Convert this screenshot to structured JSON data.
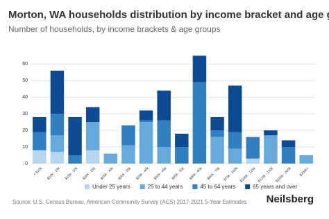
{
  "chart_data": {
    "type": "stacked-bar",
    "title": "Morton, WA households distribution by income bracket and age group",
    "subtitle": "Number of households, by income brackets & age groups",
    "categories": [
      "< $10k",
      "$10k - 15k",
      "$15k - 20k",
      "$20k - 25k",
      "$25k - 30k",
      "$30k - 35k",
      "$35k - 40k",
      "$40k - 45k",
      "$45k - 50k",
      "$50k - 60k",
      "$60k - 75k",
      "$75k - 100k",
      "$100k - 125k",
      "$125k - 150k",
      "$150k - 200k",
      "$200k+"
    ],
    "series": [
      {
        "name": "Under 25 years",
        "color": "#b6d5ee",
        "values": [
          8,
          7,
          0,
          8,
          0,
          0,
          0,
          0,
          0,
          0,
          0,
          0,
          3,
          0,
          0,
          0
        ]
      },
      {
        "name": "25 to 44 years",
        "color": "#66a9dd",
        "values": [
          0,
          10,
          0,
          17,
          6,
          11,
          25,
          10,
          0,
          0,
          16,
          9,
          0,
          17,
          0,
          5
        ]
      },
      {
        "name": "45 to 64 years",
        "color": "#2f7fc1",
        "values": [
          11,
          13,
          5,
          0,
          0,
          12,
          1,
          16,
          10,
          49,
          4,
          10,
          13,
          0,
          10,
          0
        ]
      },
      {
        "name": "65 years and over",
        "color": "#0c4b94",
        "values": [
          9,
          26,
          23,
          9,
          0,
          0,
          6,
          18,
          8,
          16,
          8,
          28,
          0,
          3,
          4,
          0
        ]
      }
    ],
    "ylim": [
      0,
      66
    ],
    "yticks": [
      0,
      10,
      20,
      30,
      40,
      50,
      60
    ],
    "grid": true,
    "source": "Source: U.S. Census Bureau, American Community Survey (ACS) 2017-2021 5-Year Estimates",
    "brand": "Neilsberg"
  }
}
